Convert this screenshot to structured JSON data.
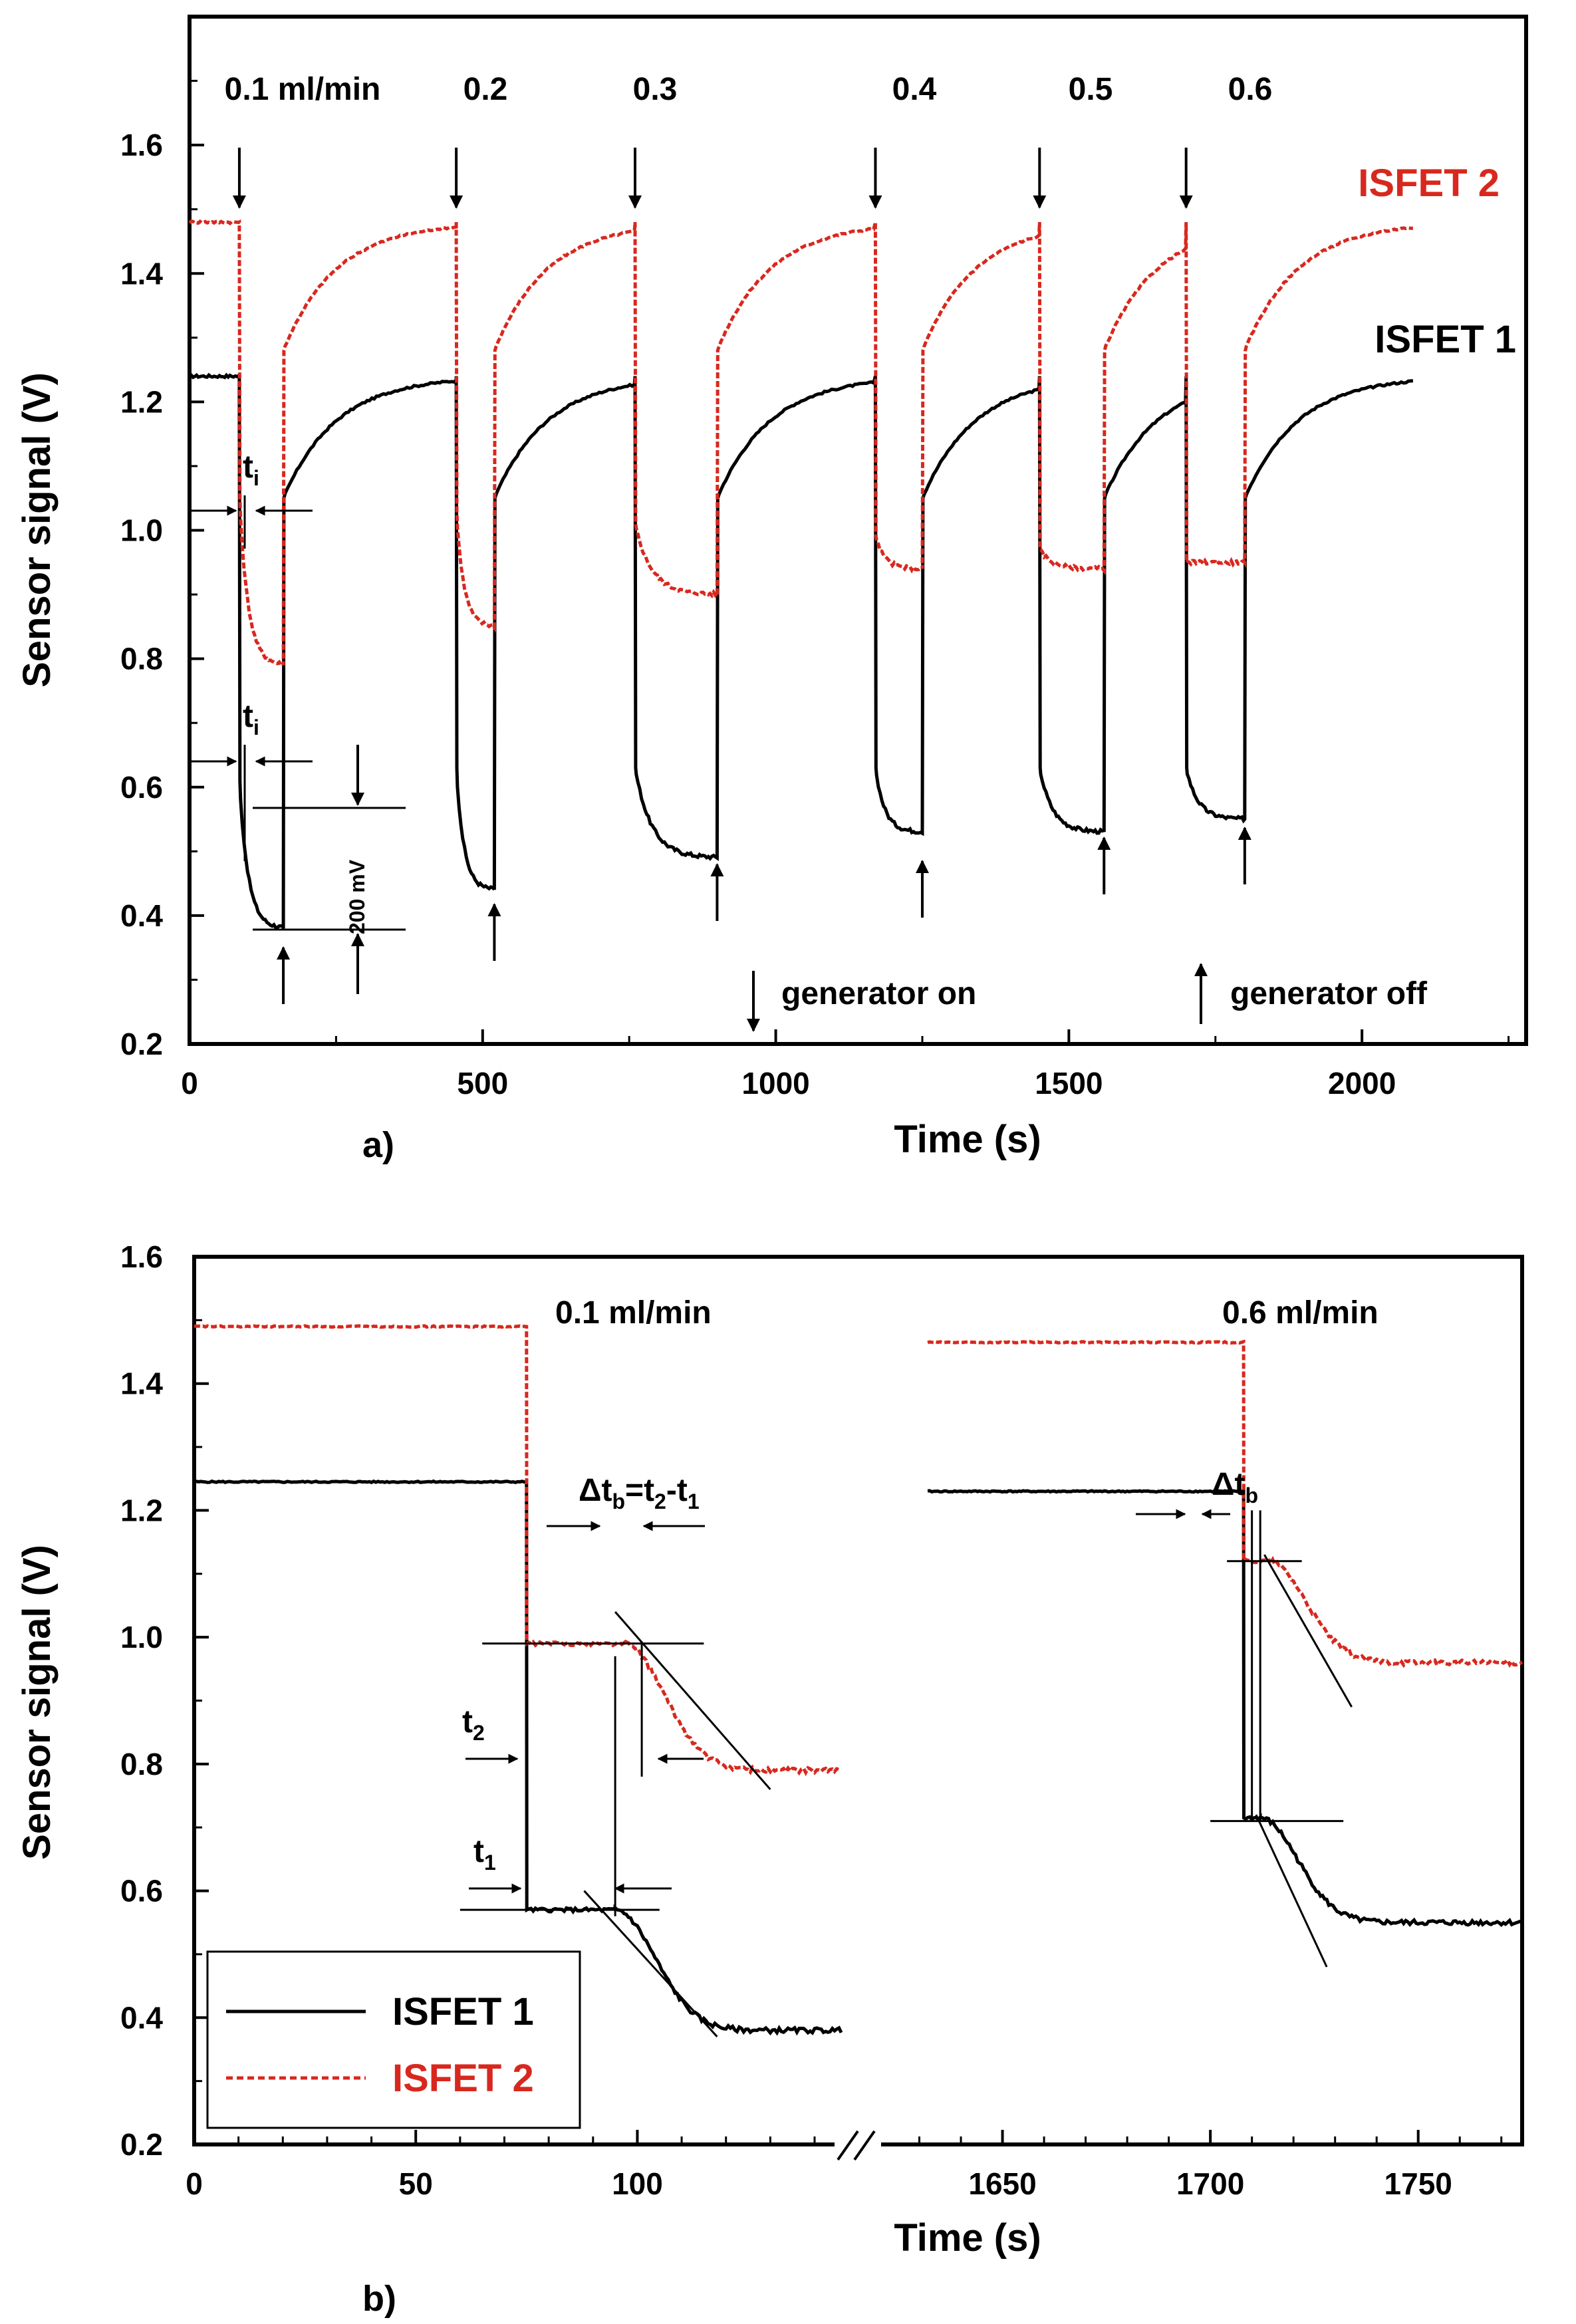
{
  "colors": {
    "isfet1": "#000000",
    "isfet2": "#d8281e"
  },
  "chart_data": [
    {
      "panel": "a)",
      "type": "line",
      "xlabel": "Time (s)",
      "ylabel": "Sensor signal (V)",
      "xlim": [
        0,
        2280
      ],
      "ylim": [
        0.2,
        1.8
      ],
      "xticks": [
        0,
        500,
        1000,
        1500,
        2000
      ],
      "yticks": [
        0.2,
        0.4,
        0.6,
        0.8,
        1.0,
        1.2,
        1.4,
        1.6
      ],
      "flow_labels": [
        "0.1 ml/min",
        "0.2",
        "0.3",
        "0.4",
        "0.5",
        "0.6"
      ],
      "generator_on_times": [
        85,
        455,
        760,
        1170,
        1450,
        1700
      ],
      "generator_off_times": [
        160,
        520,
        900,
        1250,
        1560,
        1800
      ],
      "legend_on": "generator on",
      "legend_off": "generator off",
      "series": [
        {
          "name": "ISFET 1",
          "style": "solid",
          "baseline": 1.24,
          "on_values": [
            0.38,
            0.44,
            0.49,
            0.53,
            0.53,
            0.55
          ],
          "off_jump_to": 1.05,
          "end_time": 2090
        },
        {
          "name": "ISFET 2",
          "style": "dashed",
          "baseline": 1.48,
          "on_values": [
            0.79,
            0.85,
            0.9,
            0.94,
            0.94,
            0.95
          ],
          "off_jump_to": 1.28,
          "end_time": 2090
        }
      ],
      "annotations": {
        "ti": "t",
        "ti_sub": "i",
        "scale_bar": "200 mV"
      }
    },
    {
      "panel": "b)",
      "type": "line",
      "xlabel": "Time (s)",
      "ylabel": "Sensor signal (V)",
      "ylim": [
        0.2,
        1.6
      ],
      "yticks": [
        0.2,
        0.4,
        0.6,
        0.8,
        1.0,
        1.2,
        1.4,
        1.6
      ],
      "x_segment1": {
        "range": [
          0,
          146
        ],
        "ticks": [
          0,
          50,
          100
        ]
      },
      "x_segment2": {
        "range": [
          1620,
          1775
        ],
        "ticks": [
          1650,
          1700,
          1750
        ]
      },
      "flow_labels": [
        "0.1 ml/min",
        "0.6 ml/min"
      ],
      "events": [
        {
          "segment": 1,
          "t1": 75,
          "t2": 95,
          "isfet1": {
            "before": 1.245,
            "plateau": 0.57,
            "final": 0.38
          },
          "isfet2": {
            "before": 1.49,
            "plateau": 0.99,
            "final": 0.79
          }
        },
        {
          "segment": 2,
          "t1": 1708,
          "t2": 1712,
          "isfet1": {
            "before": 1.23,
            "plateau": 0.715,
            "final": 0.55
          },
          "isfet2": {
            "before": 1.465,
            "plateau": 1.12,
            "final": 0.96
          }
        }
      ],
      "annotations": {
        "dtb1": "Δt",
        "dtb1_sub": "b",
        "dtb1_eq": "=t",
        "dtb1_sub2": "2",
        "dtb1_minus": "-t",
        "dtb1_sub3": "1",
        "dtb2": "Δt",
        "dtb2_sub": "b",
        "t2": "t",
        "t2_sub": "2",
        "t1": "t",
        "t1_sub": "1"
      },
      "legend": [
        "ISFET 1",
        "ISFET 2"
      ]
    }
  ]
}
